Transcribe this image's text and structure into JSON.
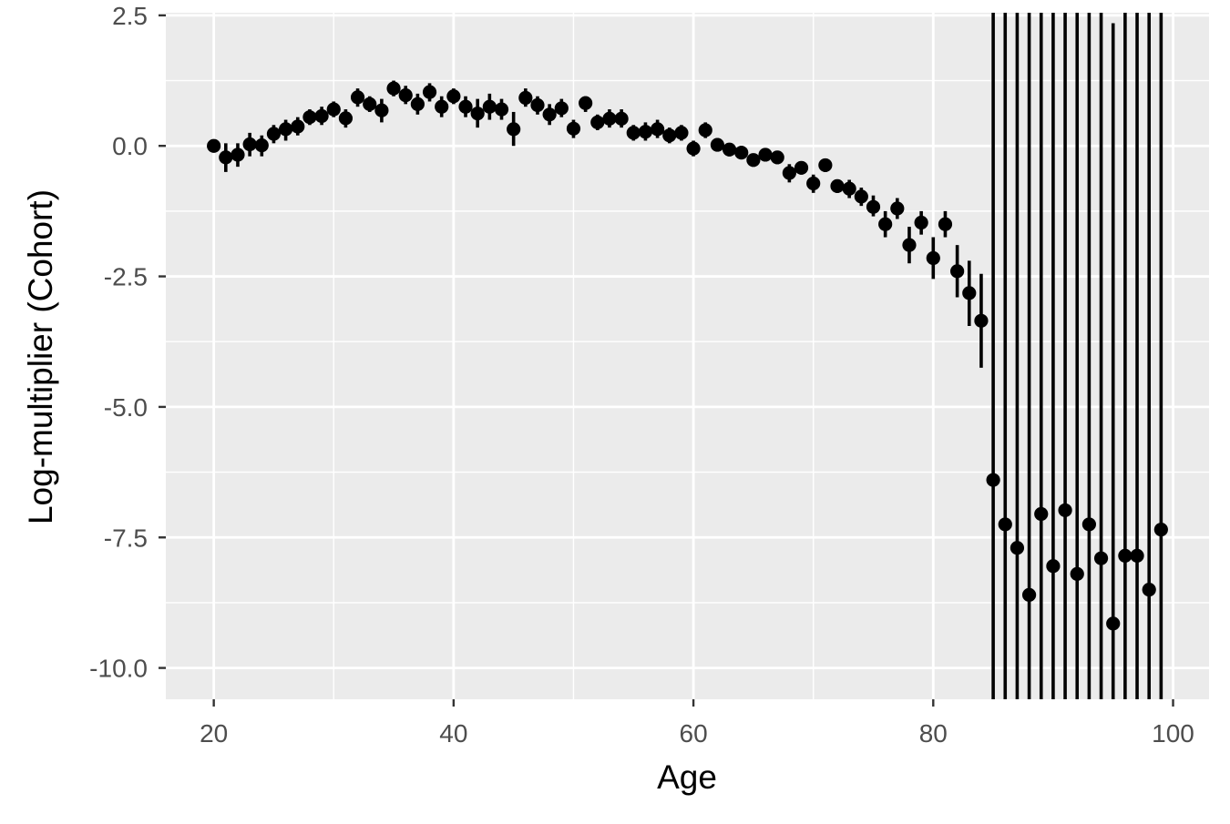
{
  "chart_data": {
    "type": "scatter",
    "title": "",
    "xlabel": "Age",
    "ylabel": "Log-multiplier (Cohort)",
    "xlim": [
      16,
      103
    ],
    "ylim": [
      -10.6,
      2.55
    ],
    "x_ticks": [
      20,
      40,
      60,
      80,
      100
    ],
    "x_tick_labels": [
      "20",
      "40",
      "60",
      "80",
      "100"
    ],
    "y_ticks": [
      2.5,
      0,
      -2.5,
      -5,
      -7.5,
      -10
    ],
    "y_tick_labels": [
      "2.5",
      "0.0",
      "-2.5",
      "-5.0",
      "-7.5",
      "-10.0"
    ],
    "grid": true,
    "error_bars": true,
    "point_color": "#000000",
    "panel_color": "#ebebeb",
    "grid_color": "#ffffff",
    "points": [
      {
        "x": 20,
        "y": 0.0,
        "lo": -0.1,
        "hi": 0.1
      },
      {
        "x": 21,
        "y": -0.22,
        "lo": -0.5,
        "hi": 0.05
      },
      {
        "x": 22,
        "y": -0.17,
        "lo": -0.4,
        "hi": 0.05
      },
      {
        "x": 23,
        "y": 0.03,
        "lo": -0.2,
        "hi": 0.25
      },
      {
        "x": 24,
        "y": 0.01,
        "lo": -0.2,
        "hi": 0.2
      },
      {
        "x": 25,
        "y": 0.23,
        "lo": 0.05,
        "hi": 0.4
      },
      {
        "x": 26,
        "y": 0.32,
        "lo": 0.1,
        "hi": 0.5
      },
      {
        "x": 27,
        "y": 0.37,
        "lo": 0.2,
        "hi": 0.55
      },
      {
        "x": 28,
        "y": 0.55,
        "lo": 0.4,
        "hi": 0.7
      },
      {
        "x": 29,
        "y": 0.57,
        "lo": 0.4,
        "hi": 0.75
      },
      {
        "x": 30,
        "y": 0.7,
        "lo": 0.55,
        "hi": 0.85
      },
      {
        "x": 31,
        "y": 0.53,
        "lo": 0.35,
        "hi": 0.7
      },
      {
        "x": 32,
        "y": 0.93,
        "lo": 0.75,
        "hi": 1.1
      },
      {
        "x": 33,
        "y": 0.8,
        "lo": 0.65,
        "hi": 0.95
      },
      {
        "x": 34,
        "y": 0.68,
        "lo": 0.45,
        "hi": 0.9
      },
      {
        "x": 35,
        "y": 1.1,
        "lo": 0.95,
        "hi": 1.25
      },
      {
        "x": 36,
        "y": 0.97,
        "lo": 0.8,
        "hi": 1.15
      },
      {
        "x": 37,
        "y": 0.8,
        "lo": 0.6,
        "hi": 1.0
      },
      {
        "x": 38,
        "y": 1.03,
        "lo": 0.85,
        "hi": 1.2
      },
      {
        "x": 39,
        "y": 0.75,
        "lo": 0.55,
        "hi": 0.95
      },
      {
        "x": 40,
        "y": 0.95,
        "lo": 0.8,
        "hi": 1.1
      },
      {
        "x": 41,
        "y": 0.75,
        "lo": 0.55,
        "hi": 0.95
      },
      {
        "x": 42,
        "y": 0.62,
        "lo": 0.35,
        "hi": 0.9
      },
      {
        "x": 43,
        "y": 0.75,
        "lo": 0.5,
        "hi": 1.0
      },
      {
        "x": 44,
        "y": 0.7,
        "lo": 0.5,
        "hi": 0.9
      },
      {
        "x": 45,
        "y": 0.32,
        "lo": 0.0,
        "hi": 0.65
      },
      {
        "x": 46,
        "y": 0.92,
        "lo": 0.75,
        "hi": 1.1
      },
      {
        "x": 47,
        "y": 0.78,
        "lo": 0.6,
        "hi": 0.95
      },
      {
        "x": 48,
        "y": 0.6,
        "lo": 0.4,
        "hi": 0.8
      },
      {
        "x": 49,
        "y": 0.72,
        "lo": 0.55,
        "hi": 0.9
      },
      {
        "x": 50,
        "y": 0.33,
        "lo": 0.15,
        "hi": 0.5
      },
      {
        "x": 51,
        "y": 0.82,
        "lo": 0.65,
        "hi": 0.95
      },
      {
        "x": 52,
        "y": 0.45,
        "lo": 0.3,
        "hi": 0.6
      },
      {
        "x": 53,
        "y": 0.52,
        "lo": 0.35,
        "hi": 0.7
      },
      {
        "x": 54,
        "y": 0.52,
        "lo": 0.35,
        "hi": 0.7
      },
      {
        "x": 55,
        "y": 0.25,
        "lo": 0.1,
        "hi": 0.4
      },
      {
        "x": 56,
        "y": 0.27,
        "lo": 0.1,
        "hi": 0.45
      },
      {
        "x": 57,
        "y": 0.32,
        "lo": 0.15,
        "hi": 0.5
      },
      {
        "x": 58,
        "y": 0.2,
        "lo": 0.05,
        "hi": 0.35
      },
      {
        "x": 59,
        "y": 0.25,
        "lo": 0.1,
        "hi": 0.4
      },
      {
        "x": 60,
        "y": -0.05,
        "lo": -0.2,
        "hi": 0.1
      },
      {
        "x": 61,
        "y": 0.3,
        "lo": 0.15,
        "hi": 0.45
      },
      {
        "x": 62,
        "y": 0.02,
        "lo": -0.1,
        "hi": 0.15
      },
      {
        "x": 63,
        "y": -0.07,
        "lo": -0.2,
        "hi": 0.05
      },
      {
        "x": 64,
        "y": -0.13,
        "lo": -0.25,
        "hi": 0.0
      },
      {
        "x": 65,
        "y": -0.27,
        "lo": -0.4,
        "hi": -0.15
      },
      {
        "x": 66,
        "y": -0.17,
        "lo": -0.3,
        "hi": -0.05
      },
      {
        "x": 67,
        "y": -0.22,
        "lo": -0.35,
        "hi": -0.1
      },
      {
        "x": 68,
        "y": -0.52,
        "lo": -0.7,
        "hi": -0.35
      },
      {
        "x": 69,
        "y": -0.42,
        "lo": -0.55,
        "hi": -0.3
      },
      {
        "x": 70,
        "y": -0.72,
        "lo": -0.9,
        "hi": -0.55
      },
      {
        "x": 71,
        "y": -0.37,
        "lo": -0.5,
        "hi": -0.25
      },
      {
        "x": 72,
        "y": -0.77,
        "lo": -0.9,
        "hi": -0.65
      },
      {
        "x": 73,
        "y": -0.82,
        "lo": -1.0,
        "hi": -0.65
      },
      {
        "x": 74,
        "y": -0.97,
        "lo": -1.15,
        "hi": -0.8
      },
      {
        "x": 75,
        "y": -1.17,
        "lo": -1.35,
        "hi": -0.95
      },
      {
        "x": 76,
        "y": -1.5,
        "lo": -1.75,
        "hi": -1.25
      },
      {
        "x": 77,
        "y": -1.2,
        "lo": -1.4,
        "hi": -1.0
      },
      {
        "x": 78,
        "y": -1.9,
        "lo": -2.25,
        "hi": -1.55
      },
      {
        "x": 79,
        "y": -1.47,
        "lo": -1.7,
        "hi": -1.25
      },
      {
        "x": 80,
        "y": -2.15,
        "lo": -2.55,
        "hi": -1.75
      },
      {
        "x": 81,
        "y": -1.5,
        "lo": -1.75,
        "hi": -1.25
      },
      {
        "x": 82,
        "y": -2.4,
        "lo": -2.9,
        "hi": -1.9
      },
      {
        "x": 83,
        "y": -2.82,
        "lo": -3.45,
        "hi": -2.2
      },
      {
        "x": 84,
        "y": -3.35,
        "lo": -4.25,
        "hi": -2.45
      },
      {
        "x": 85,
        "y": -6.4,
        "lo": -10.6,
        "hi": 2.55
      },
      {
        "x": 86,
        "y": -7.25,
        "lo": -10.6,
        "hi": 2.55
      },
      {
        "x": 87,
        "y": -7.7,
        "lo": -10.6,
        "hi": 2.55
      },
      {
        "x": 88,
        "y": -8.6,
        "lo": -10.6,
        "hi": 2.55
      },
      {
        "x": 89,
        "y": -7.05,
        "lo": -10.6,
        "hi": 2.55
      },
      {
        "x": 90,
        "y": -8.05,
        "lo": -10.6,
        "hi": 2.55
      },
      {
        "x": 91,
        "y": -6.98,
        "lo": -10.6,
        "hi": 2.55
      },
      {
        "x": 92,
        "y": -8.2,
        "lo": -10.6,
        "hi": 2.55
      },
      {
        "x": 93,
        "y": -7.25,
        "lo": -10.6,
        "hi": 2.55
      },
      {
        "x": 94,
        "y": -7.9,
        "lo": -10.6,
        "hi": 2.55
      },
      {
        "x": 95,
        "y": -9.15,
        "lo": -10.6,
        "hi": 2.35
      },
      {
        "x": 96,
        "y": -7.85,
        "lo": -10.6,
        "hi": 2.55
      },
      {
        "x": 97,
        "y": -7.85,
        "lo": -10.6,
        "hi": 2.55
      },
      {
        "x": 98,
        "y": -8.5,
        "lo": -10.6,
        "hi": 2.55
      },
      {
        "x": 99,
        "y": -7.35,
        "lo": -10.6,
        "hi": 2.55
      }
    ]
  }
}
